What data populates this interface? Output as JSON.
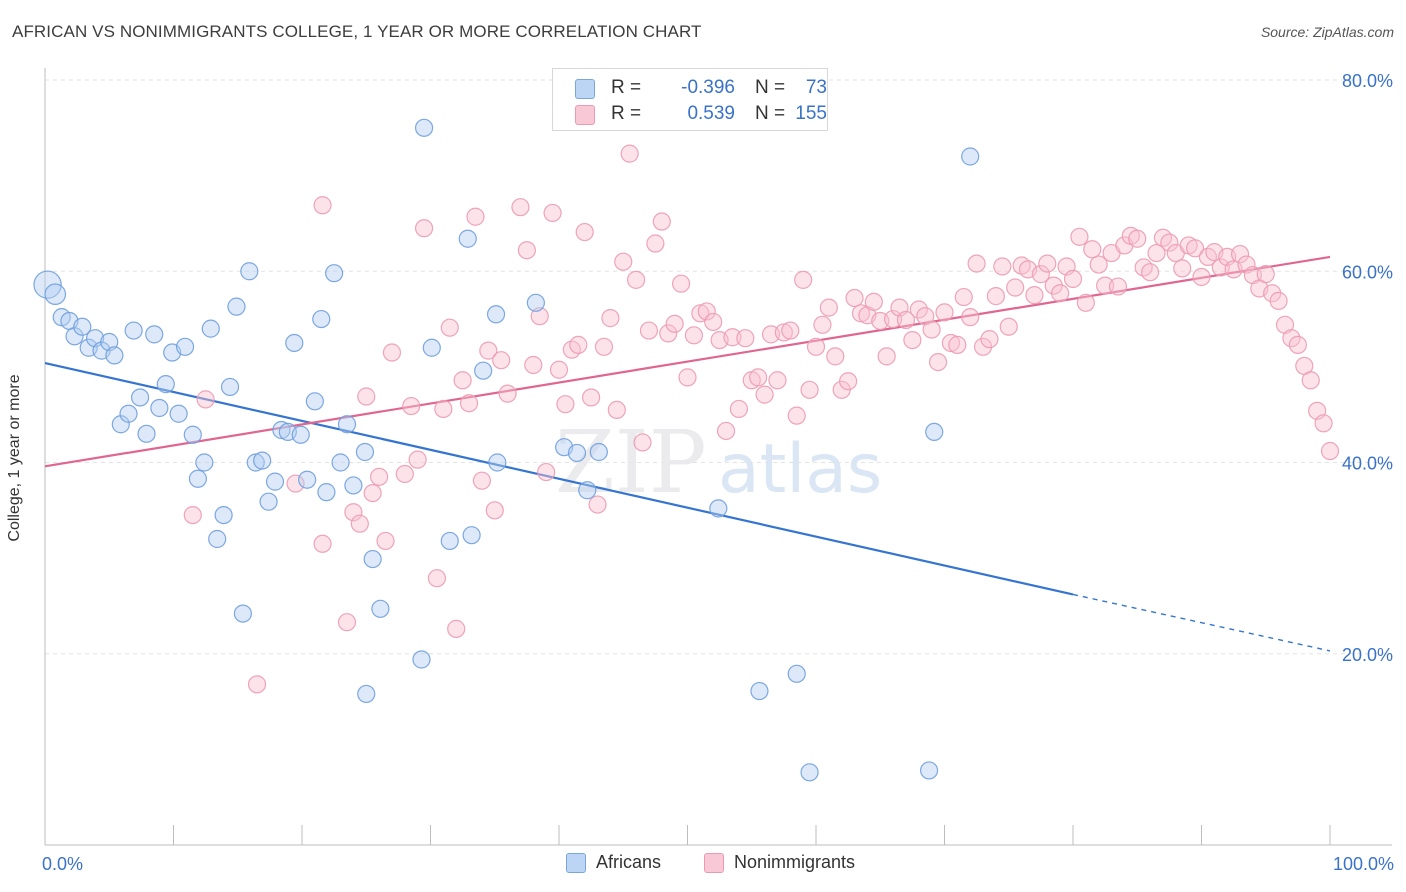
{
  "title": "AFRICAN VS NONIMMIGRANTS COLLEGE, 1 YEAR OR MORE CORRELATION CHART",
  "source": "Source: ZipAtlas.com",
  "watermark": {
    "zip": "ZIP",
    "atlas": "atlas"
  },
  "legend": {
    "r_label": "R =",
    "n_label": "N =",
    "africans": {
      "r": "-0.396",
      "n": "73",
      "color": "#a8c8f0"
    },
    "nonimmigrants": {
      "r": "0.539",
      "n": "155",
      "color": "#f5b8c8"
    }
  },
  "bottom_legend": {
    "africans": "Africans",
    "nonimmigrants": "Nonimmigrants"
  },
  "chart_data": {
    "type": "scatter",
    "xlabel": "",
    "ylabel": "College, 1 year or more",
    "xlim": [
      0,
      100
    ],
    "ylim": [
      0,
      84
    ],
    "x_tick_labels": {
      "left": "0.0%",
      "right": "100.0%"
    },
    "y_ticks": [
      {
        "value": 20,
        "label": "20.0%"
      },
      {
        "value": 40,
        "label": "40.0%"
      },
      {
        "value": 60,
        "label": "60.0%"
      },
      {
        "value": 80,
        "label": "80.0%"
      }
    ],
    "grid": true,
    "series": [
      {
        "name": "Africans",
        "color": "#4a86d8",
        "fill": "#a8c8f0",
        "trend": {
          "x0": 0,
          "y0": 50.4,
          "x1": 80,
          "y1": 26.2,
          "dashed_to": 100,
          "dashed_y": 20.3
        },
        "points": [
          [
            0.2,
            58.6,
            1.6
          ],
          [
            0.8,
            57.6,
            1.2
          ],
          [
            1.3,
            55.2,
            1
          ],
          [
            1.9,
            54.8,
            1
          ],
          [
            2.3,
            53.2,
            1
          ],
          [
            2.9,
            54.2,
            1
          ],
          [
            3.4,
            52,
            1
          ],
          [
            3.9,
            53,
            1
          ],
          [
            4.4,
            51.7,
            1
          ],
          [
            5.0,
            52.6,
            1
          ],
          [
            5.4,
            51.2,
            1
          ],
          [
            5.9,
            44,
            1
          ],
          [
            6.5,
            45.1,
            1
          ],
          [
            6.9,
            53.8,
            1
          ],
          [
            7.4,
            46.8,
            1
          ],
          [
            7.9,
            43,
            1
          ],
          [
            8.5,
            53.4,
            1
          ],
          [
            8.9,
            45.7,
            1
          ],
          [
            9.4,
            48.2,
            1
          ],
          [
            9.9,
            51.5,
            1
          ],
          [
            10.4,
            45.1,
            1
          ],
          [
            10.9,
            52.1,
            1
          ],
          [
            11.5,
            42.9,
            1
          ],
          [
            11.9,
            38.3,
            1
          ],
          [
            12.4,
            40,
            1
          ],
          [
            12.9,
            54,
            1
          ],
          [
            13.4,
            32,
            1
          ],
          [
            13.9,
            34.5,
            1
          ],
          [
            14.4,
            47.9,
            1
          ],
          [
            14.9,
            56.3,
            1
          ],
          [
            15.4,
            24.2,
            1
          ],
          [
            15.9,
            60,
            1
          ],
          [
            16.4,
            40,
            1
          ],
          [
            16.9,
            40.2,
            1
          ],
          [
            17.4,
            35.9,
            1
          ],
          [
            17.9,
            38,
            1
          ],
          [
            18.4,
            43.4,
            1
          ],
          [
            18.9,
            43.2,
            1
          ],
          [
            19.4,
            52.5,
            1
          ],
          [
            19.9,
            42.9,
            1
          ],
          [
            20.4,
            38.2,
            1
          ],
          [
            21.0,
            46.4,
            1
          ],
          [
            21.5,
            55,
            1
          ],
          [
            21.9,
            36.9,
            1
          ],
          [
            22.5,
            59.8,
            1
          ],
          [
            23.0,
            40,
            1
          ],
          [
            23.5,
            44,
            1
          ],
          [
            24.0,
            37.6,
            1
          ],
          [
            24.9,
            41.1,
            1
          ],
          [
            25.0,
            15.8,
            1
          ],
          [
            25.5,
            29.9,
            1
          ],
          [
            26.1,
            24.7,
            1
          ],
          [
            29.3,
            19.4,
            1
          ],
          [
            29.5,
            75,
            1
          ],
          [
            30.1,
            52,
            1
          ],
          [
            31.5,
            31.8,
            1
          ],
          [
            32.9,
            63.4,
            1
          ],
          [
            33.2,
            32.4,
            1
          ],
          [
            34.1,
            49.6,
            1
          ],
          [
            35.1,
            55.5,
            1
          ],
          [
            35.2,
            40,
            1
          ],
          [
            38.2,
            56.7,
            1
          ],
          [
            40.4,
            41.6,
            1
          ],
          [
            41.4,
            41,
            1
          ],
          [
            42.2,
            37.1,
            1
          ],
          [
            43.1,
            41.1,
            1
          ],
          [
            52.4,
            35.2,
            1
          ],
          [
            55.6,
            16.1,
            1
          ],
          [
            58.5,
            17.9,
            1
          ],
          [
            59.5,
            7.6,
            1
          ],
          [
            69.2,
            43.2,
            1
          ],
          [
            68.8,
            7.8,
            1
          ],
          [
            72.0,
            72,
            1
          ]
        ]
      },
      {
        "name": "Nonimmigrants",
        "color": "#e0608a",
        "fill": "#f5b8c8",
        "trend": {
          "x0": 0,
          "y0": 39.6,
          "x1": 100,
          "y1": 61.5
        },
        "points": [
          [
            11.5,
            34.5,
            1
          ],
          [
            12.5,
            46.6,
            1
          ],
          [
            16.5,
            16.8,
            1
          ],
          [
            19.5,
            37.8,
            1
          ],
          [
            21.6,
            31.5,
            1
          ],
          [
            21.6,
            66.9,
            1
          ],
          [
            23.5,
            23.3,
            1
          ],
          [
            24,
            34.8,
            1
          ],
          [
            24.5,
            33.6,
            1
          ],
          [
            25,
            46.9,
            1
          ],
          [
            25.5,
            36.8,
            1
          ],
          [
            26,
            38.5,
            1
          ],
          [
            26.5,
            31.8,
            1
          ],
          [
            27,
            51.5,
            1
          ],
          [
            28,
            38.8,
            1
          ],
          [
            28.5,
            45.9,
            1
          ],
          [
            29,
            40.3,
            1
          ],
          [
            29.5,
            64.5,
            1
          ],
          [
            30.5,
            27.9,
            1
          ],
          [
            31,
            45.6,
            1
          ],
          [
            31.5,
            54.1,
            1
          ],
          [
            32,
            22.6,
            1
          ],
          [
            32.5,
            48.6,
            1
          ],
          [
            33,
            46.2,
            1
          ],
          [
            33.5,
            65.7,
            1
          ],
          [
            34,
            38.1,
            1
          ],
          [
            34.5,
            51.7,
            1
          ],
          [
            35,
            35,
            1
          ],
          [
            35.5,
            50.7,
            1
          ],
          [
            36,
            47.2,
            1
          ],
          [
            37,
            66.7,
            1
          ],
          [
            37.5,
            62.2,
            1
          ],
          [
            38,
            50.2,
            1
          ],
          [
            38.5,
            55.3,
            1
          ],
          [
            39,
            39,
            1
          ],
          [
            39.5,
            66.1,
            1
          ],
          [
            40,
            49.7,
            1
          ],
          [
            40.5,
            46.1,
            1
          ],
          [
            41,
            51.8,
            1
          ],
          [
            41.5,
            52.3,
            1
          ],
          [
            42,
            64.1,
            1
          ],
          [
            42.5,
            46.8,
            1
          ],
          [
            43,
            35.6,
            1
          ],
          [
            43.5,
            52.1,
            1
          ],
          [
            44,
            55.1,
            1
          ],
          [
            44.5,
            45.5,
            1
          ],
          [
            45,
            61,
            1
          ],
          [
            45.5,
            72.3,
            1
          ],
          [
            46,
            59.1,
            1
          ],
          [
            46.5,
            42.1,
            1
          ],
          [
            47,
            53.8,
            1
          ],
          [
            47.5,
            62.9,
            1
          ],
          [
            48,
            65.2,
            1
          ],
          [
            48.5,
            53.5,
            1
          ],
          [
            49,
            54.5,
            1
          ],
          [
            49.5,
            58.7,
            1
          ],
          [
            50,
            48.9,
            1
          ],
          [
            50.5,
            53.3,
            1
          ],
          [
            51,
            55.6,
            1
          ],
          [
            51.5,
            55.8,
            1
          ],
          [
            52,
            54.7,
            1
          ],
          [
            52.5,
            52.8,
            1
          ],
          [
            53,
            43.3,
            1
          ],
          [
            53.5,
            53.1,
            1
          ],
          [
            54,
            45.6,
            1
          ],
          [
            54.5,
            53,
            1
          ],
          [
            55,
            48.6,
            1
          ],
          [
            55.5,
            48.9,
            1
          ],
          [
            56,
            47.1,
            1
          ],
          [
            56.5,
            53.4,
            1
          ],
          [
            57,
            48.6,
            1
          ],
          [
            57.5,
            53.6,
            1
          ],
          [
            58,
            53.8,
            1
          ],
          [
            58.5,
            44.9,
            1
          ],
          [
            59,
            59.1,
            1
          ],
          [
            59.5,
            47.6,
            1
          ],
          [
            60,
            52.1,
            1
          ],
          [
            60.5,
            54.4,
            1
          ],
          [
            61,
            56.2,
            1
          ],
          [
            61.5,
            51.1,
            1
          ],
          [
            62,
            47.6,
            1
          ],
          [
            62.5,
            48.5,
            1
          ],
          [
            63,
            57.2,
            1
          ],
          [
            63.5,
            55.6,
            1
          ],
          [
            64,
            55.4,
            1
          ],
          [
            64.5,
            56.8,
            1
          ],
          [
            65,
            54.8,
            1
          ],
          [
            65.5,
            51.1,
            1
          ],
          [
            66,
            55,
            1
          ],
          [
            66.5,
            56.2,
            1
          ],
          [
            67,
            54.9,
            1
          ],
          [
            67.5,
            52.8,
            1
          ],
          [
            68,
            56,
            1
          ],
          [
            68.5,
            55.3,
            1
          ],
          [
            69,
            53.9,
            1
          ],
          [
            69.5,
            50.5,
            1
          ],
          [
            70,
            55.7,
            1
          ],
          [
            70.5,
            52.5,
            1
          ],
          [
            71,
            52.3,
            1
          ],
          [
            71.5,
            57.3,
            1
          ],
          [
            72,
            55.2,
            1
          ],
          [
            72.5,
            60.8,
            1
          ],
          [
            73,
            52.1,
            1
          ],
          [
            73.5,
            52.9,
            1
          ],
          [
            74,
            57.4,
            1
          ],
          [
            74.5,
            60.5,
            1
          ],
          [
            75,
            54.2,
            1
          ],
          [
            75.5,
            58.3,
            1
          ],
          [
            76,
            60.6,
            1
          ],
          [
            76.5,
            60.2,
            1
          ],
          [
            77,
            57.5,
            1
          ],
          [
            77.5,
            59.7,
            1
          ],
          [
            78,
            60.8,
            1
          ],
          [
            78.5,
            58.5,
            1
          ],
          [
            79,
            57.7,
            1
          ],
          [
            79.5,
            60.5,
            1
          ],
          [
            80,
            59.2,
            1
          ],
          [
            80.5,
            63.6,
            1
          ],
          [
            81,
            56.7,
            1
          ],
          [
            81.5,
            62.3,
            1
          ],
          [
            82,
            60.7,
            1
          ],
          [
            82.5,
            58.5,
            1
          ],
          [
            83,
            61.9,
            1
          ],
          [
            83.5,
            58.4,
            1
          ],
          [
            84,
            62.7,
            1
          ],
          [
            84.5,
            63.7,
            1
          ],
          [
            85,
            63.4,
            1
          ],
          [
            85.5,
            60.4,
            1
          ],
          [
            86,
            59.9,
            1
          ],
          [
            86.5,
            61.9,
            1
          ],
          [
            87,
            63.5,
            1
          ],
          [
            87.5,
            63,
            1
          ],
          [
            88,
            61.9,
            1
          ],
          [
            88.5,
            60.3,
            1
          ],
          [
            89,
            62.7,
            1
          ],
          [
            89.5,
            62.4,
            1
          ],
          [
            90,
            59.4,
            1
          ],
          [
            90.5,
            61.5,
            1
          ],
          [
            91,
            62,
            1
          ],
          [
            91.5,
            60.4,
            1
          ],
          [
            92,
            61.5,
            1
          ],
          [
            92.5,
            60.2,
            1
          ],
          [
            93,
            61.8,
            1
          ],
          [
            93.5,
            60.7,
            1
          ],
          [
            94,
            59.6,
            1
          ],
          [
            94.5,
            58.2,
            1
          ],
          [
            95,
            59.7,
            1
          ],
          [
            95.5,
            57.7,
            1
          ],
          [
            96,
            56.9,
            1
          ],
          [
            96.5,
            54.4,
            1
          ],
          [
            97,
            53,
            1
          ],
          [
            97.5,
            52.3,
            1
          ],
          [
            98,
            50.1,
            1
          ],
          [
            98.5,
            48.6,
            1
          ],
          [
            99,
            45.4,
            1
          ],
          [
            99.5,
            44.1,
            1
          ],
          [
            100,
            41.2,
            1
          ]
        ]
      }
    ]
  }
}
